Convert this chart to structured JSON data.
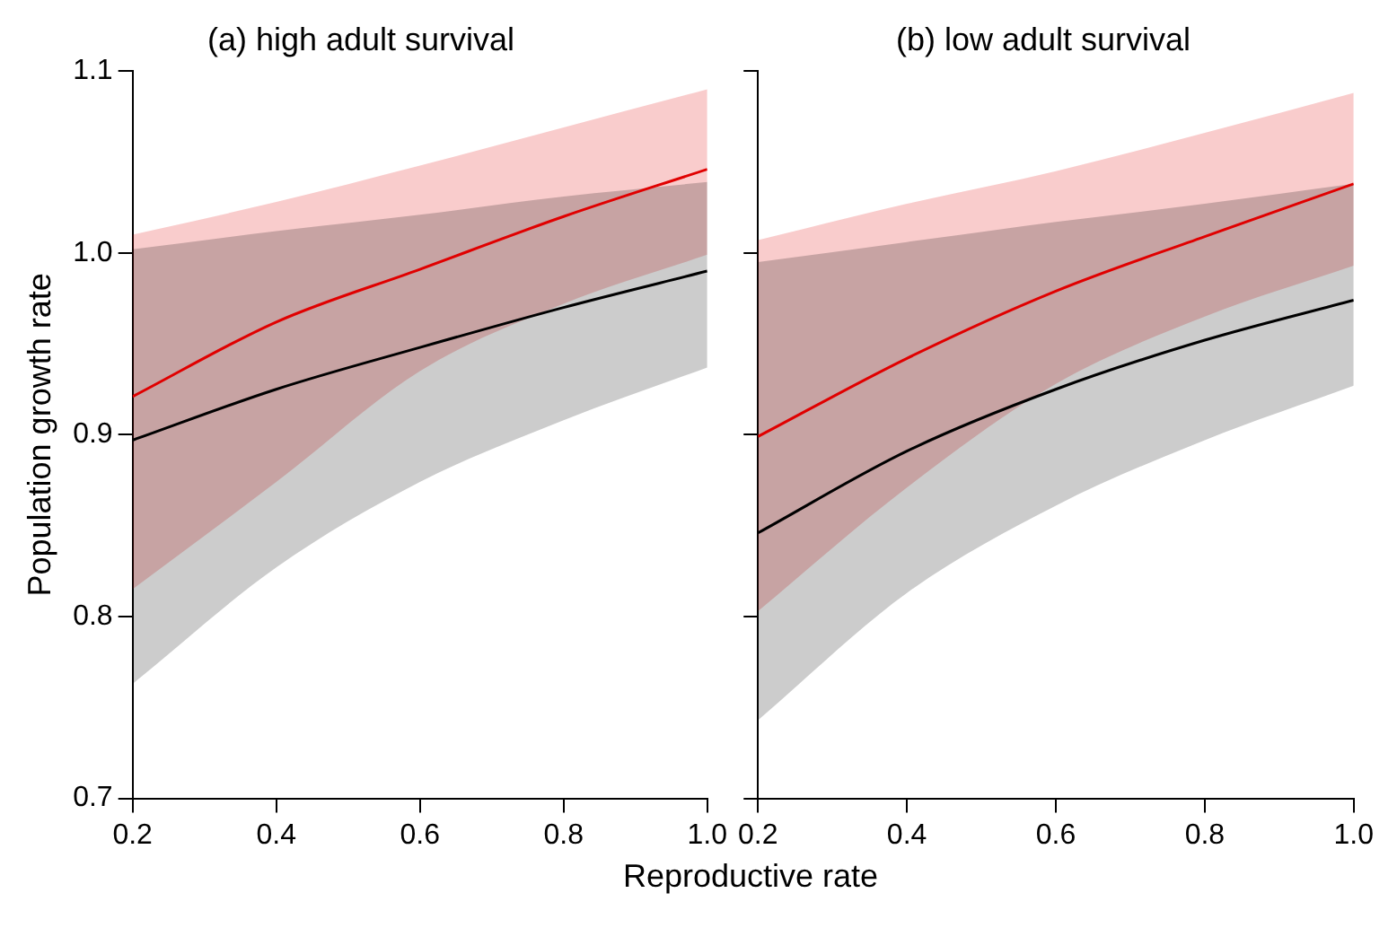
{
  "chart_data": [
    {
      "type": "line",
      "title": "(a) high adult survival",
      "xlabel": "Reproductive rate",
      "ylabel": "Population growth rate",
      "x": [
        0.2,
        0.4,
        0.6,
        0.8,
        1.0
      ],
      "xlim": [
        0.2,
        1.0
      ],
      "xticks": [
        0.2,
        0.4,
        0.6,
        0.8,
        {
          "value": 1.0,
          "label": "1.0"
        }
      ],
      "ylim": [
        0.7,
        1.1
      ],
      "yticks": [
        0.7,
        0.8,
        0.9,
        {
          "value": 1.0,
          "label": "1.0"
        },
        1.1
      ],
      "grid": false,
      "legend": false,
      "series": [
        {
          "color": "#000000",
          "values": [
            0.897,
            0.925,
            0.948,
            0.97,
            0.99
          ],
          "lower": [
            0.763,
            0.827,
            0.874,
            0.908,
            0.937
          ],
          "upper": [
            1.002,
            1.012,
            1.021,
            1.031,
            1.039
          ]
        },
        {
          "color": "#e00000",
          "values": [
            0.921,
            0.962,
            0.991,
            1.02,
            1.046
          ],
          "lower": [
            0.815,
            0.874,
            0.935,
            0.972,
            0.999
          ],
          "upper": [
            1.01,
            1.028,
            1.048,
            1.069,
            1.09
          ]
        }
      ]
    },
    {
      "type": "line",
      "title": "(b) low adult survival",
      "x": [
        0.2,
        0.4,
        0.6,
        0.8,
        1.0
      ],
      "xlim": [
        0.2,
        1.0
      ],
      "xticks": [
        0.2,
        0.4,
        0.6,
        0.8,
        {
          "value": 1.0,
          "label": "1.0"
        }
      ],
      "ylim": [
        0.7,
        1.1
      ],
      "yticks": [
        0.7,
        0.8,
        0.9,
        1,
        1.1
      ],
      "tick_labels": "x",
      "grid": false,
      "legend": false,
      "series": [
        {
          "color": "#000000",
          "values": [
            0.846,
            0.891,
            0.925,
            0.952,
            0.974
          ],
          "lower": [
            0.743,
            0.813,
            0.861,
            0.897,
            0.927
          ],
          "upper": [
            0.995,
            1.006,
            1.017,
            1.027,
            1.038
          ]
        },
        {
          "color": "#e00000",
          "values": [
            0.899,
            0.942,
            0.979,
            1.009,
            1.038
          ],
          "lower": [
            0.803,
            0.871,
            0.928,
            0.965,
            0.993
          ],
          "upper": [
            1.007,
            1.027,
            1.045,
            1.066,
            1.088
          ]
        }
      ]
    }
  ]
}
